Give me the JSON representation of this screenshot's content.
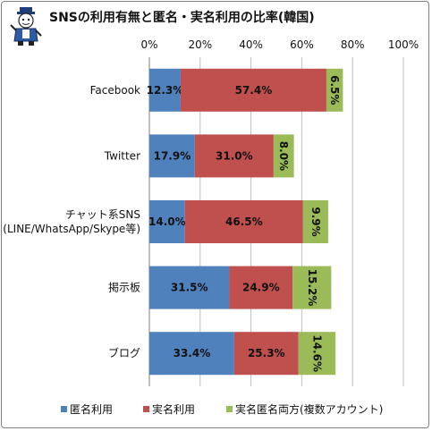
{
  "header": {
    "title": "SNSの利用有無と匿名・実名利用の比率(韓国)"
  },
  "colors": {
    "anonymous": "#4f81bd",
    "real_name": "#c0504d",
    "both": "#9bbb59",
    "grid": "#bfbfbf",
    "axis": "#7f7f7f"
  },
  "chart_data": {
    "type": "bar",
    "orientation": "horizontal",
    "stacked": true,
    "title": "SNSの利用有無と匿名・実名利用の比率(韓国)",
    "xlim": [
      0,
      100
    ],
    "x_ticks": [
      "0%",
      "20%",
      "40%",
      "60%",
      "80%",
      "100%"
    ],
    "x_tick_values": [
      0,
      20,
      40,
      60,
      80,
      100
    ],
    "grid": true,
    "legend_position": "bottom",
    "categories": [
      [
        "Facebook"
      ],
      [
        "Twitter"
      ],
      [
        "チャット系SNS",
        "(LINE/WhatsApp/Skype等)"
      ],
      [
        "掲示板"
      ],
      [
        "ブログ"
      ]
    ],
    "series": [
      {
        "name": "匿名利用",
        "color": "#4f81bd",
        "values": [
          12.3,
          17.9,
          14.0,
          31.5,
          33.4
        ],
        "labels": [
          "12.3%",
          "17.9%",
          "14.0%",
          "31.5%",
          "33.4%"
        ]
      },
      {
        "name": "実名利用",
        "color": "#c0504d",
        "values": [
          57.4,
          31.0,
          46.5,
          24.9,
          25.3
        ],
        "labels": [
          "57.4%",
          "31.0%",
          "46.5%",
          "24.9%",
          "25.3%"
        ]
      },
      {
        "name": "実名匿名両方(複数アカウント)",
        "color": "#9bbb59",
        "values": [
          6.5,
          8.0,
          9.9,
          15.2,
          14.6
        ],
        "labels": [
          "6.5%",
          "8.0%",
          "9.9%",
          "15.2%",
          "14.6%"
        ],
        "label_rotation": "vertical"
      }
    ]
  }
}
